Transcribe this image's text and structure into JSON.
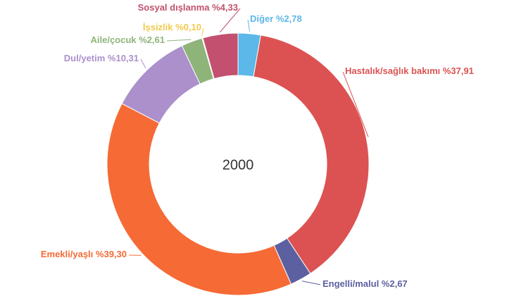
{
  "chart_data": {
    "type": "donut",
    "center_label": "2000",
    "categories": [
      "Diğer",
      "Hastalık/sağlık bakımı",
      "Engelli/malul",
      "Emekli/yaşlı",
      "Dul/yetim",
      "Aile/çocuk",
      "İşsizlik",
      "Sosyal dışlanma"
    ],
    "values": [
      2.78,
      37.91,
      2.67,
      39.3,
      10.31,
      2.61,
      0.1,
      4.33
    ],
    "value_labels": [
      "%2,78",
      "%37,91",
      "%2,67",
      "%39,30",
      "%10,31",
      "%2,61",
      "%0,10",
      "%4,33"
    ],
    "colors": [
      "#5bb8e8",
      "#dc5252",
      "#5c5fa0",
      "#f56a35",
      "#ab90cc",
      "#8fb47a",
      "#f2c94c",
      "#c2506e"
    ]
  }
}
